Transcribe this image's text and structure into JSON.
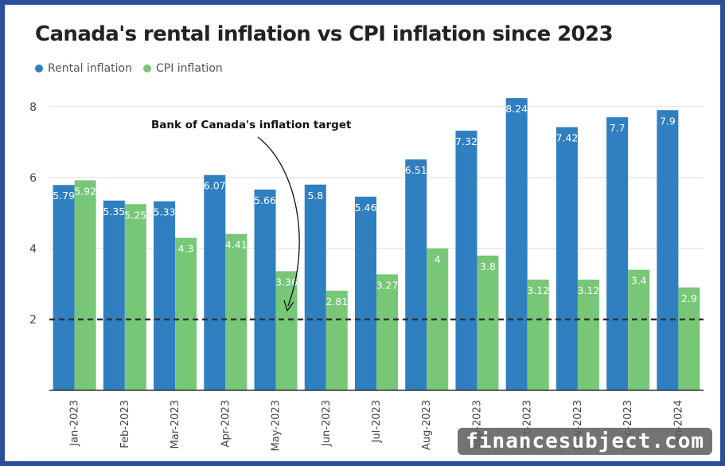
{
  "chart_data": {
    "type": "bar",
    "title": "Canada's rental inflation vs CPI inflation since 2023",
    "categories": [
      "Jan-2023",
      "Feb-2023",
      "Mar-2023",
      "Apr-2023",
      "May-2023",
      "Jun-2023",
      "Jul-2023",
      "Aug-2023",
      "Sep-2023",
      "Oct-2023",
      "Nov-2023",
      "Dec-2023",
      "Jan-2024"
    ],
    "series": [
      {
        "name": "Rental inflation",
        "color": "#2f7fc1",
        "values": [
          5.79,
          5.35,
          5.33,
          6.07,
          5.66,
          5.8,
          5.46,
          6.51,
          7.32,
          8.24,
          7.42,
          7.7,
          7.9
        ]
      },
      {
        "name": "CPI inflation",
        "color": "#77c777",
        "values": [
          5.92,
          5.25,
          4.3,
          4.41,
          3.36,
          2.81,
          3.27,
          4,
          3.8,
          3.12,
          3.12,
          3.4,
          2.9
        ]
      }
    ],
    "ylim": [
      0,
      8.4
    ],
    "yticks": [
      2,
      4,
      6,
      8
    ],
    "legend": "top-left",
    "grid": true,
    "reference_line": {
      "value": 2,
      "label": "Bank of Canada's inflation target",
      "style": "dashed",
      "color": "#333333"
    }
  },
  "watermark": "financesubject.com"
}
